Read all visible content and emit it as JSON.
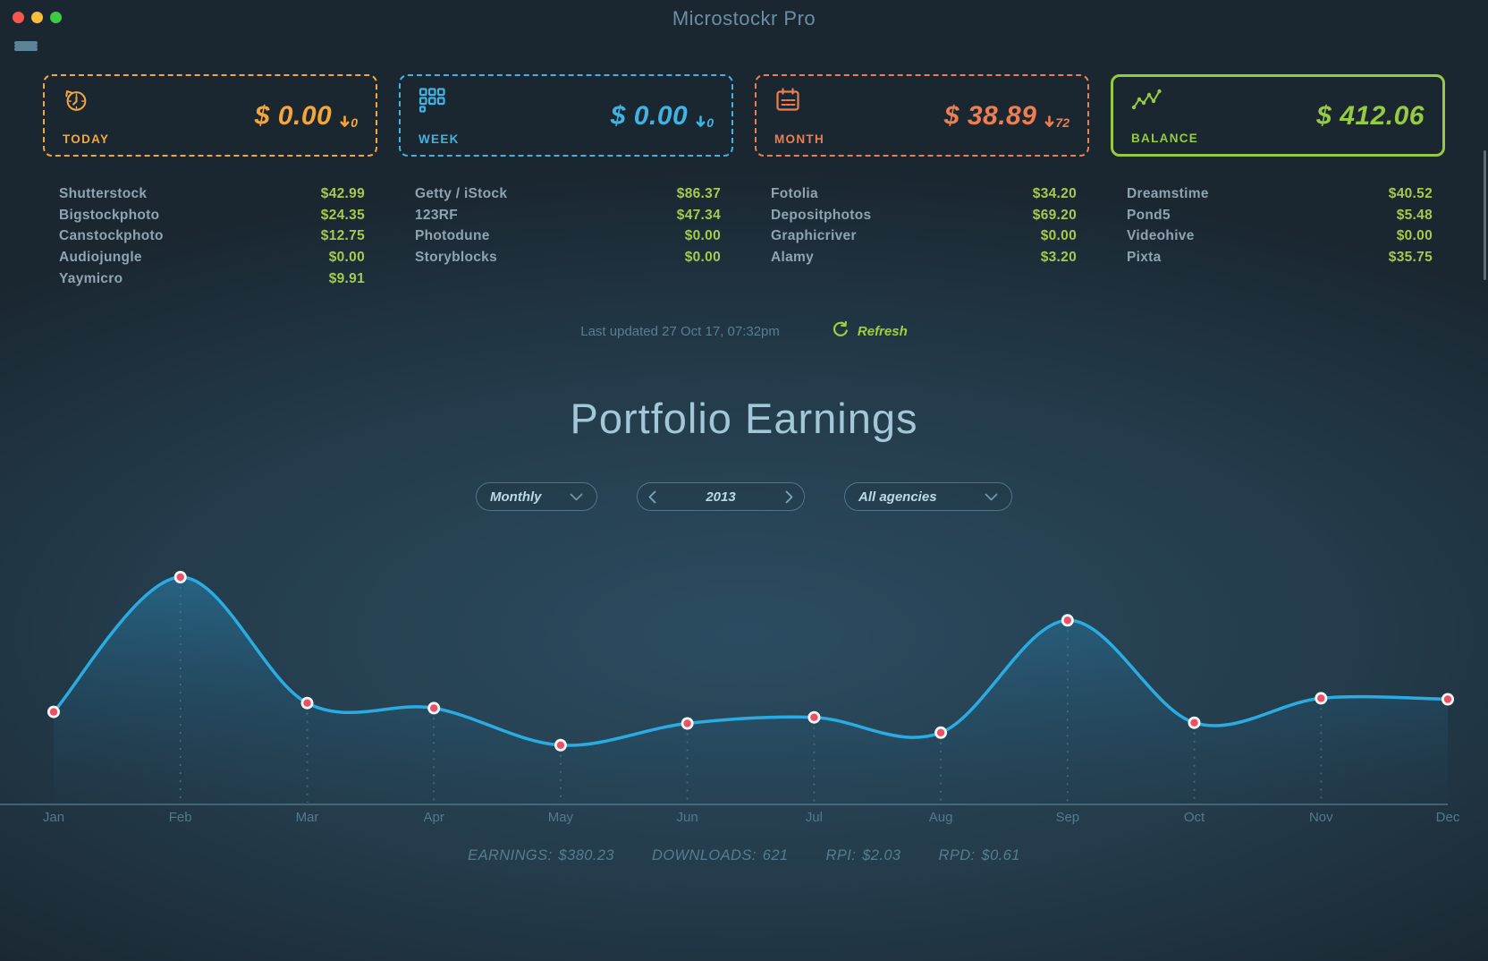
{
  "window": {
    "title": "Microstockr Pro"
  },
  "colors": {
    "today": "#f4a63b",
    "week": "#41b3e3",
    "month": "#ec7e52",
    "balance": "#97ca41",
    "value-green": "#a6ca4d",
    "agency-name": "#8ea4b1",
    "muted-text": "#597e93",
    "heading-text": "#a3c6d8",
    "app-title-text": "#6b8ea3",
    "chart-line": "#2aace3",
    "chart-dot": "#ea5167",
    "refresh-green": "#a0cf3e",
    "pill-border": "#51748a",
    "pill-text": "#bcd9e6",
    "mac-close": "#f6564f",
    "mac-minimize": "#f9bd3e",
    "mac-zoom": "#3ec948"
  },
  "stats_cards": [
    {
      "id": "today",
      "label": "TODAY",
      "value": "$ 0.00",
      "delta": "0",
      "icon": "history-clock-icon"
    },
    {
      "id": "week",
      "label": "WEEK",
      "value": "$ 0.00",
      "delta": "0",
      "icon": "calendar-week-icon"
    },
    {
      "id": "month",
      "label": "MONTH",
      "value": "$ 38.89",
      "delta": "72",
      "icon": "calendar-icon"
    },
    {
      "id": "balance",
      "label": "BALANCE",
      "value": "$ 412.06",
      "delta": null,
      "icon": "line-chart-icon"
    }
  ],
  "agency_columns": [
    {
      "agencies": [
        {
          "name": "Shutterstock",
          "value": "$42.99"
        },
        {
          "name": "Bigstockphoto",
          "value": "$24.35"
        },
        {
          "name": "Canstockphoto",
          "value": "$12.75"
        },
        {
          "name": "Audiojungle",
          "value": "$0.00"
        },
        {
          "name": "Yaymicro",
          "value": "$9.91"
        }
      ]
    },
    {
      "agencies": [
        {
          "name": "Getty / iStock",
          "value": "$86.37"
        },
        {
          "name": "123RF",
          "value": "$47.34"
        },
        {
          "name": "Photodune",
          "value": "$0.00"
        },
        {
          "name": "Storyblocks",
          "value": "$0.00"
        }
      ]
    },
    {
      "agencies": [
        {
          "name": "Fotolia",
          "value": "$34.20"
        },
        {
          "name": "Depositphotos",
          "value": "$69.20"
        },
        {
          "name": "Graphicriver",
          "value": "$0.00"
        },
        {
          "name": "Alamy",
          "value": "$3.20"
        }
      ]
    },
    {
      "agencies": [
        {
          "name": "Dreamstime",
          "value": "$40.52"
        },
        {
          "name": "Pond5",
          "value": "$5.48"
        },
        {
          "name": "Videohive",
          "value": "$0.00"
        },
        {
          "name": "Pixta",
          "value": "$35.75"
        }
      ]
    }
  ],
  "last_updated": {
    "text": "Last updated 27 Oct 17, 07:32pm",
    "refresh_label": "Refresh"
  },
  "portfolio": {
    "title": "Portfolio Earnings",
    "controls": {
      "period": "Monthly",
      "year": "2013",
      "agency_filter": "All agencies"
    }
  },
  "chart_data": {
    "type": "area",
    "title": "Portfolio Earnings",
    "x": [
      "Jan",
      "Feb",
      "Mar",
      "Apr",
      "May",
      "Jun",
      "Jul",
      "Aug",
      "Sep",
      "Oct",
      "Nov",
      "Dec"
    ],
    "series": [
      {
        "name": "Monthly earnings 2013 (USD, estimated from plot)",
        "values": [
          27.2,
          66.8,
          29.8,
          28.3,
          17.4,
          23.8,
          25.6,
          21.1,
          54.1,
          24.0,
          31.2,
          30.9
        ]
      }
    ],
    "ylim": [
      0,
      70
    ],
    "xlabel": "",
    "ylabel": "",
    "legend": "none",
    "grid": "dashed vertical drop-lines under each data point",
    "annotations": "no y-axis shown; totals bar below chart reads EARNINGS: $380.23"
  },
  "summary": [
    {
      "label": "EARNINGS:",
      "value": "$380.23"
    },
    {
      "label": "DOWNLOADS:",
      "value": "621"
    },
    {
      "label": "RPI:",
      "value": "$2.03"
    },
    {
      "label": "RPD:",
      "value": "$0.61"
    }
  ]
}
